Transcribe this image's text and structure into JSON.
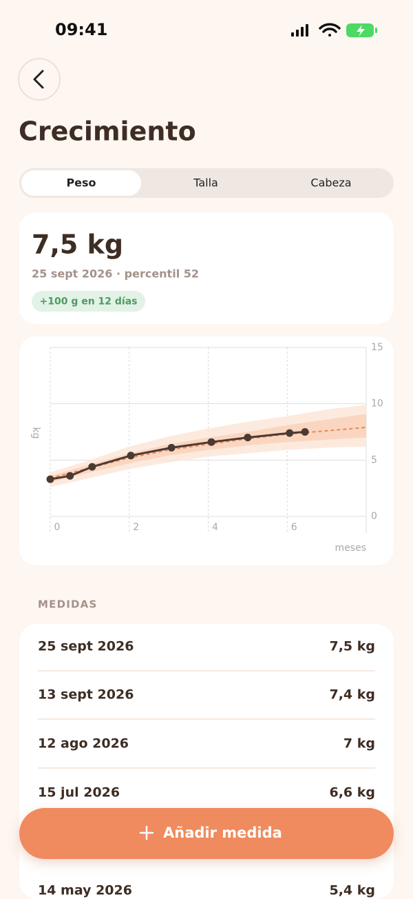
{
  "status_bar": {
    "time": "09:41"
  },
  "header": {
    "title": "Crecimiento"
  },
  "tabs": [
    "Peso",
    "Talla",
    "Cabeza"
  ],
  "active_tab": 0,
  "summary": {
    "value": "7,5 kg",
    "detail": "25 sept 2026 · percentil 52",
    "badge": "+100 g en 12 días"
  },
  "chart_data": {
    "type": "line",
    "x_label": "meses",
    "y_label": "kg",
    "x": [
      0,
      0.5,
      1.06,
      2.04,
      3.07,
      4.08,
      5,
      6.06,
      6.45
    ],
    "series": [
      {
        "color": "#4a3a32",
        "values": [
          3.3,
          3.6,
          4.4,
          5.4,
          6.1,
          6.6,
          7.0,
          7.4,
          7.5
        ]
      }
    ],
    "reference": {
      "x": [
        0,
        1,
        2,
        3,
        4,
        5,
        6,
        7,
        8
      ],
      "median": [
        3.4,
        4.3,
        5.2,
        5.9,
        6.4,
        6.9,
        7.3,
        7.6,
        7.9
      ],
      "color": "#e8875a",
      "bands": [
        {
          "color": "#fde6d8",
          "lower": [
            2.6,
            3.4,
            4.2,
            4.8,
            5.3,
            5.6,
            5.9,
            6.1,
            6.2
          ],
          "upper": [
            3.9,
            5.0,
            6.2,
            7.1,
            7.8,
            8.4,
            8.9,
            9.5,
            9.9
          ]
        },
        {
          "color": "#f9d2bb",
          "lower": [
            3.0,
            3.9,
            4.7,
            5.4,
            5.9,
            6.3,
            6.6,
            6.8,
            7.0
          ],
          "upper": [
            3.6,
            4.6,
            5.6,
            6.4,
            7.0,
            7.5,
            8.1,
            8.6,
            9.1
          ]
        }
      ]
    },
    "xlim": [
      0,
      8
    ],
    "xticks": [
      0,
      2,
      4,
      6
    ],
    "ylim": [
      0,
      15
    ],
    "yticks": [
      0,
      5,
      10,
      15
    ],
    "grid": true
  },
  "section_title": "MEDIDAS",
  "measurements": [
    {
      "date": "25 sept 2026",
      "value": "7,5 kg"
    },
    {
      "date": "13 sept 2026",
      "value": "7,4 kg"
    },
    {
      "date": "12 ago 2026",
      "value": "7 kg"
    },
    {
      "date": "15 jul 2026",
      "value": "6,6 kg"
    },
    {
      "date": "14 may 2026",
      "value": "5,4 kg"
    }
  ],
  "action": {
    "label": "Añadir medida"
  }
}
